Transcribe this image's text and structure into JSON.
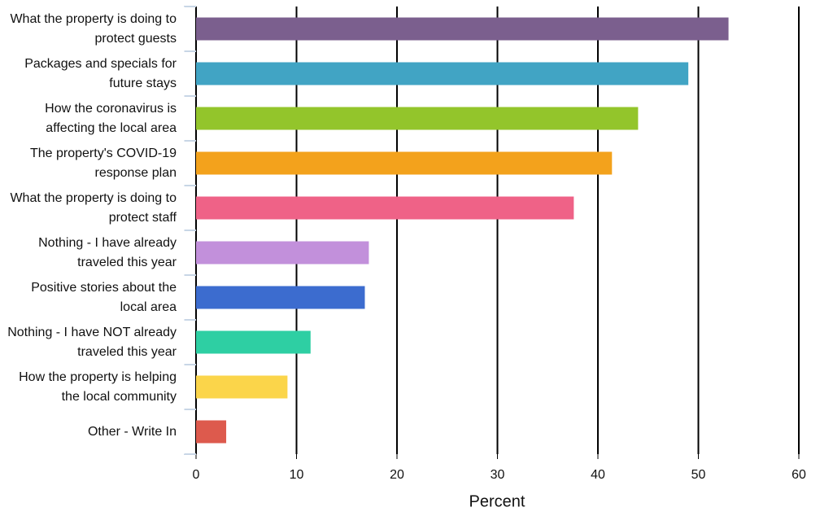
{
  "chart_data": {
    "type": "bar",
    "orientation": "horizontal",
    "categories": [
      "What the property is doing to protect guests",
      "Packages and specials for future stays",
      "How the coronavirus is affecting the local area",
      "The property's COVID-19 response plan",
      "What the property is doing to protect staff",
      "Nothing - I have already traveled this year",
      "Positive stories about the local area",
      "Nothing - I have NOT already traveled this year",
      "How the property is helping the local community",
      "Other - Write In"
    ],
    "values": [
      53.0,
      49.0,
      44.0,
      41.4,
      37.6,
      17.2,
      16.8,
      11.4,
      9.1,
      3.0
    ],
    "colors": [
      "#7b5f8e",
      "#41a4c4",
      "#93c52b",
      "#f3a21c",
      "#ef6287",
      "#c290db",
      "#3c6ccf",
      "#2ecfa3",
      "#fbd54a",
      "#dd5a4d"
    ],
    "xlabel": "Percent",
    "xlim": [
      0,
      60
    ],
    "xticks": [
      0,
      10,
      20,
      30,
      40,
      50,
      60
    ],
    "grid": true
  }
}
